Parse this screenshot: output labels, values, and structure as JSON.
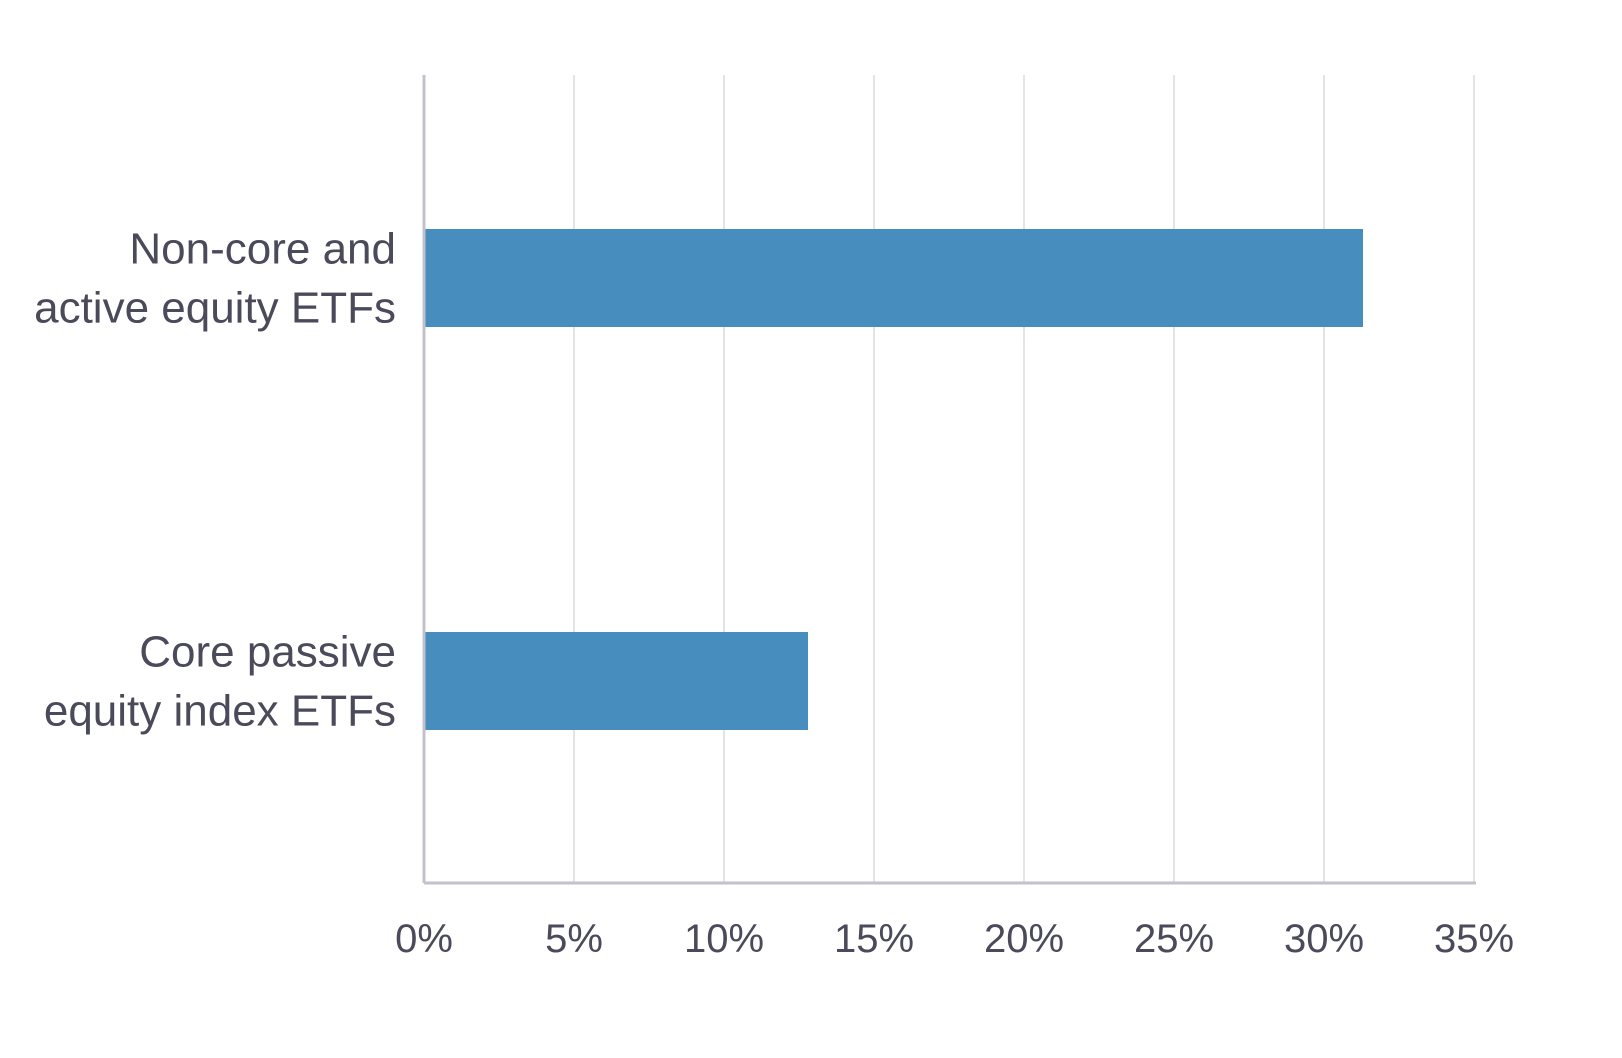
{
  "chart_data": {
    "type": "bar",
    "orientation": "horizontal",
    "title": "",
    "xlabel": "",
    "ylabel": "",
    "categories": [
      [
        "Non-core and",
        "active equity ETFs"
      ],
      [
        "Core passive",
        "equity index ETFs"
      ]
    ],
    "values": [
      31.3,
      12.8
    ],
    "xlim": [
      0,
      35
    ],
    "xticks": [
      0,
      5,
      10,
      15,
      20,
      25,
      30,
      35
    ],
    "xtick_labels": [
      "0%",
      "5%",
      "10%",
      "15%",
      "20%",
      "25%",
      "30%",
      "35%"
    ],
    "grid": "vertical",
    "legend": "none",
    "colors": {
      "bar": "#478dbd",
      "grid": "#e4e4e8",
      "axis": "#c2c2cc",
      "text": "#4a4a5a"
    }
  }
}
